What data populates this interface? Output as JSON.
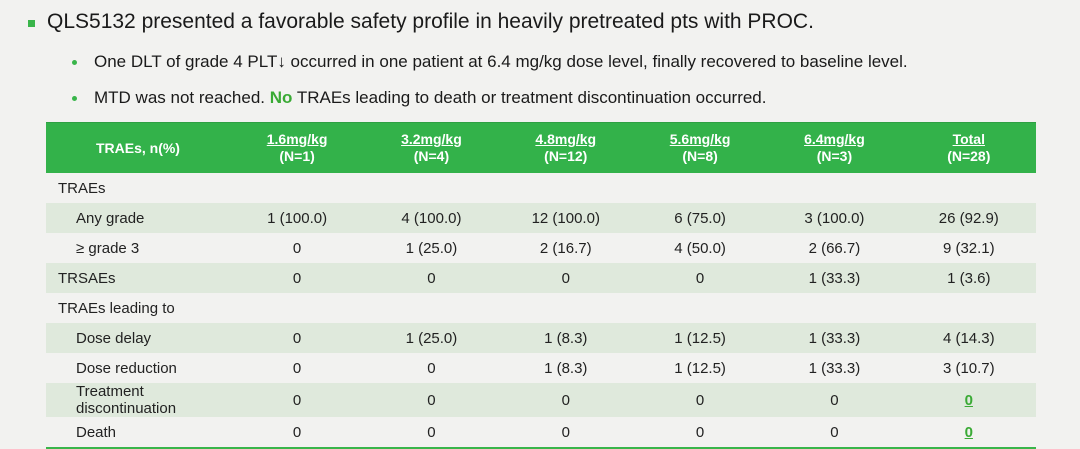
{
  "heading": {
    "text": "QLS5132 presented a favorable safety profile in heavily pretreated pts with PROC."
  },
  "bullets": [
    {
      "text": "One DLT of grade 4 PLT↓ occurred in one patient at 6.4 mg/kg dose level, finally recovered to baseline level."
    },
    {
      "prefix": "MTD was not reached. ",
      "highlight": "No",
      "suffix": " TRAEs leading to death or treatment discontinuation occurred."
    }
  ],
  "table": {
    "header": {
      "label": "TRAEs, n(%)",
      "columns": [
        {
          "dose": "1.6mg/kg",
          "n": "(N=1)"
        },
        {
          "dose": "3.2mg/kg",
          "n": "(N=4)"
        },
        {
          "dose": "4.8mg/kg",
          "n": "(N=12)"
        },
        {
          "dose": "5.6mg/kg",
          "n": "(N=8)"
        },
        {
          "dose": "6.4mg/kg",
          "n": "(N=3)"
        },
        {
          "dose": "Total",
          "n": "(N=28)"
        }
      ]
    },
    "rows": [
      {
        "label": "TRAEs",
        "indent": false,
        "shade": false,
        "values": [
          "",
          "",
          "",
          "",
          "",
          ""
        ]
      },
      {
        "label": "Any grade",
        "indent": true,
        "shade": true,
        "values": [
          "1 (100.0)",
          "4 (100.0)",
          "12 (100.0)",
          "6 (75.0)",
          "3 (100.0)",
          "26 (92.9)"
        ]
      },
      {
        "label": "≥ grade 3",
        "indent": true,
        "shade": false,
        "values": [
          "0",
          "1 (25.0)",
          "2 (16.7)",
          "4 (50.0)",
          "2 (66.7)",
          "9 (32.1)"
        ]
      },
      {
        "label": "TRSAEs",
        "indent": false,
        "shade": true,
        "values": [
          "0",
          "0",
          "0",
          "0",
          "1 (33.3)",
          "1 (3.6)"
        ]
      },
      {
        "label": "TRAEs leading to",
        "indent": false,
        "shade": false,
        "values": [
          "",
          "",
          "",
          "",
          "",
          ""
        ]
      },
      {
        "label": "Dose delay",
        "indent": true,
        "shade": true,
        "values": [
          "0",
          "1 (25.0)",
          "1 (8.3)",
          "1 (12.5)",
          "1 (33.3)",
          "4 (14.3)"
        ]
      },
      {
        "label": "Dose reduction",
        "indent": true,
        "shade": false,
        "values": [
          "0",
          "0",
          "1 (8.3)",
          "1 (12.5)",
          "1 (33.3)",
          "3 (10.7)"
        ]
      },
      {
        "label": "Treatment discontinuation",
        "indent": true,
        "shade": true,
        "values": [
          "0",
          "0",
          "0",
          "0",
          "0",
          "0"
        ]
      },
      {
        "label": "Death",
        "indent": true,
        "shade": false,
        "values": [
          "0",
          "0",
          "0",
          "0",
          "0",
          "0"
        ]
      }
    ],
    "highlighted_zero_rows": [
      7,
      8
    ]
  },
  "colors": {
    "accent_green": "#33b24a",
    "row_shade": "#dfe9dc",
    "background": "#f2f2f0"
  }
}
